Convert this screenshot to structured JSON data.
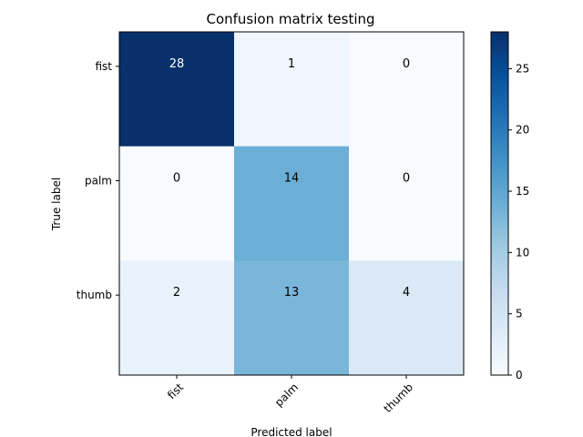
{
  "chart_data": {
    "type": "heatmap",
    "title": "Confusion matrix testing",
    "xlabel": "Predicted label",
    "ylabel": "True label",
    "x_categories": [
      "fist",
      "palm",
      "thumb"
    ],
    "y_categories": [
      "fist",
      "palm",
      "thumb"
    ],
    "values": [
      [
        28,
        1,
        0
      ],
      [
        0,
        14,
        0
      ],
      [
        2,
        13,
        4
      ]
    ],
    "colormap": "Blues",
    "colorbar": {
      "min": 0,
      "max": 28,
      "ticks": [
        0,
        5,
        10,
        15,
        20,
        25
      ]
    },
    "text_color_light": "#ffffff",
    "text_color_dark": "#000000"
  }
}
